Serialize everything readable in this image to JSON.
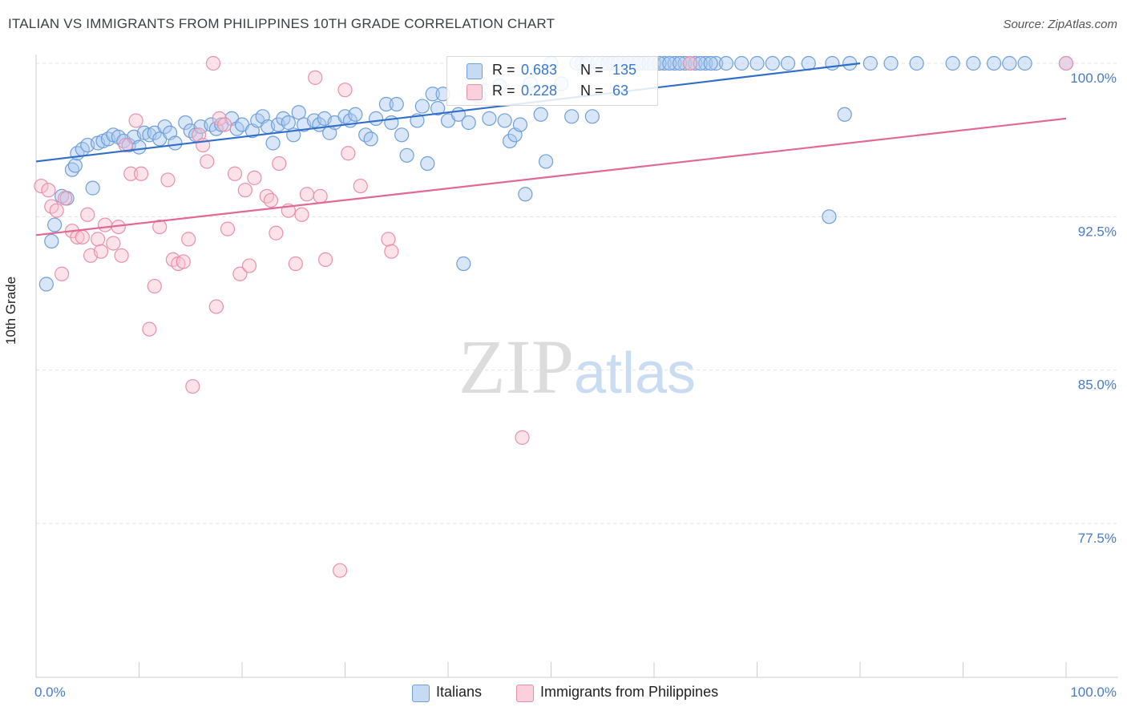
{
  "title": "ITALIAN VS IMMIGRANTS FROM PHILIPPINES 10TH GRADE CORRELATION CHART",
  "source": "Source: ZipAtlas.com",
  "watermark": "ZIPatlas",
  "legend": {
    "series": [
      {
        "name": "Italians",
        "r_label": "R =",
        "r_value": "0.683",
        "n_label": "N =",
        "n_value": "135",
        "color": "#a8c8f0",
        "stroke": "#6f9fd8"
      },
      {
        "name": "Immigrants from Philippines",
        "r_label": "R =",
        "r_value": "0.228",
        "n_label": "N =",
        "n_value": "63",
        "color": "#f8c0d0",
        "stroke": "#e890aa"
      }
    ]
  },
  "chart_data": {
    "type": "scatter",
    "title": "ITALIAN VS IMMIGRANTS FROM PHILIPPINES 10TH GRADE CORRELATION CHART",
    "xlabel": "",
    "ylabel": "10th Grade",
    "xlim": [
      0,
      100
    ],
    "ylim": [
      71.5,
      101.5
    ],
    "x_tick_labels": [
      "0.0%",
      "100.0%"
    ],
    "y_ticks": [
      77.5,
      85.0,
      92.5,
      100.0
    ],
    "y_tick_labels": [
      "77.5%",
      "85.0%",
      "92.5%",
      "100.0%"
    ],
    "grid": true,
    "legend_position": "top-center",
    "series": [
      {
        "name": "Italians",
        "color": "#6f9fd8",
        "fill": "#a8c8f0",
        "trend": {
          "x": [
            0,
            80
          ],
          "y": [
            95.2,
            100.0
          ],
          "color": "#2f6fc9"
        },
        "points": [
          [
            1,
            89.2
          ],
          [
            1.5,
            91.3
          ],
          [
            1.8,
            92.1
          ],
          [
            2.5,
            93.5
          ],
          [
            3,
            93.4
          ],
          [
            3.5,
            94.8
          ],
          [
            3.8,
            95.0
          ],
          [
            4,
            95.6
          ],
          [
            4.5,
            95.8
          ],
          [
            5,
            96.0
          ],
          [
            5.5,
            93.9
          ],
          [
            6,
            96.1
          ],
          [
            6.5,
            96.2
          ],
          [
            7,
            96.3
          ],
          [
            7.5,
            96.5
          ],
          [
            8,
            96.4
          ],
          [
            8.5,
            96.2
          ],
          [
            9,
            96.0
          ],
          [
            9.5,
            96.4
          ],
          [
            10,
            95.9
          ],
          [
            10.5,
            96.6
          ],
          [
            11,
            96.5
          ],
          [
            11.5,
            96.6
          ],
          [
            12,
            96.3
          ],
          [
            12.5,
            96.9
          ],
          [
            13,
            96.6
          ],
          [
            13.5,
            96.1
          ],
          [
            14.5,
            97.1
          ],
          [
            15,
            96.7
          ],
          [
            15.5,
            96.5
          ],
          [
            16,
            96.9
          ],
          [
            17,
            97.0
          ],
          [
            17.5,
            96.8
          ],
          [
            18,
            97.0
          ],
          [
            19,
            97.3
          ],
          [
            19.5,
            96.8
          ],
          [
            20,
            97.0
          ],
          [
            21,
            96.7
          ],
          [
            21.5,
            97.2
          ],
          [
            22,
            97.4
          ],
          [
            22.5,
            96.9
          ],
          [
            23,
            96.1
          ],
          [
            23.5,
            97.0
          ],
          [
            24,
            97.3
          ],
          [
            24.5,
            97.1
          ],
          [
            25,
            96.5
          ],
          [
            25.5,
            97.6
          ],
          [
            26,
            97.0
          ],
          [
            27,
            97.2
          ],
          [
            27.5,
            97.0
          ],
          [
            28,
            97.3
          ],
          [
            28.5,
            96.6
          ],
          [
            29,
            97.1
          ],
          [
            30,
            97.4
          ],
          [
            30.5,
            97.2
          ],
          [
            31,
            97.5
          ],
          [
            32,
            96.5
          ],
          [
            32.5,
            96.3
          ],
          [
            33,
            97.3
          ],
          [
            34,
            98.0
          ],
          [
            34.5,
            97.1
          ],
          [
            35,
            98.0
          ],
          [
            35.5,
            96.5
          ],
          [
            36,
            95.5
          ],
          [
            37,
            97.2
          ],
          [
            37.5,
            97.9
          ],
          [
            38,
            95.1
          ],
          [
            38.5,
            98.5
          ],
          [
            39,
            97.8
          ],
          [
            39.5,
            98.5
          ],
          [
            40,
            97.2
          ],
          [
            41,
            97.5
          ],
          [
            41.5,
            90.2
          ],
          [
            42,
            97.1
          ],
          [
            43,
            98.4
          ],
          [
            44,
            97.3
          ],
          [
            45,
            98.9
          ],
          [
            45.5,
            97.2
          ],
          [
            46,
            96.2
          ],
          [
            46.5,
            96.5
          ],
          [
            47,
            97.0
          ],
          [
            47.5,
            93.6
          ],
          [
            48,
            99.0
          ],
          [
            49,
            97.5
          ],
          [
            49.5,
            95.2
          ],
          [
            50,
            100.0
          ],
          [
            51,
            99.0
          ],
          [
            52,
            97.4
          ],
          [
            53,
            100.0
          ],
          [
            54,
            97.4
          ],
          [
            55,
            100.0
          ],
          [
            56,
            100.0
          ],
          [
            57,
            100.0
          ],
          [
            58,
            100.0
          ],
          [
            59,
            100.0
          ],
          [
            60,
            100.0
          ],
          [
            61,
            100.0
          ],
          [
            62,
            100.0
          ],
          [
            63,
            100.0
          ],
          [
            64,
            100.0
          ],
          [
            65,
            100.0
          ],
          [
            66,
            100.0
          ],
          [
            67,
            100.0
          ],
          [
            68.5,
            100.0
          ],
          [
            70,
            100.0
          ],
          [
            71.5,
            100.0
          ],
          [
            73,
            100.0
          ],
          [
            75,
            100.0
          ],
          [
            77,
            92.5
          ],
          [
            77.3,
            100.0
          ],
          [
            78.5,
            97.5
          ],
          [
            79,
            100.0
          ],
          [
            81,
            100.0
          ],
          [
            83,
            100.0
          ],
          [
            85.5,
            100.0
          ],
          [
            89,
            100.0
          ],
          [
            91,
            100.0
          ],
          [
            93,
            100.0
          ],
          [
            94.5,
            100.0
          ],
          [
            96,
            100.0
          ],
          [
            100,
            100.0
          ],
          [
            52.5,
            100.0
          ],
          [
            53.5,
            100.0
          ],
          [
            54.5,
            100.0
          ],
          [
            55.5,
            100.0
          ],
          [
            56.5,
            100.0
          ],
          [
            57.5,
            100.0
          ],
          [
            58.5,
            100.0
          ],
          [
            59.5,
            100.0
          ],
          [
            60.5,
            100.0
          ],
          [
            61.5,
            100.0
          ],
          [
            62.5,
            100.0
          ],
          [
            63.5,
            100.0
          ],
          [
            64.5,
            100.0
          ],
          [
            65.5,
            100.0
          ]
        ]
      },
      {
        "name": "Immigrants from Philippines",
        "color": "#e890aa",
        "fill": "#f8c0d0",
        "trend": {
          "x": [
            0,
            100
          ],
          "y": [
            91.6,
            97.3
          ],
          "color": "#e06a93"
        },
        "points": [
          [
            0.5,
            94.0
          ],
          [
            1.2,
            93.8
          ],
          [
            1.5,
            93.0
          ],
          [
            2,
            92.8
          ],
          [
            2.5,
            89.7
          ],
          [
            2.8,
            93.4
          ],
          [
            3.5,
            91.8
          ],
          [
            4,
            91.5
          ],
          [
            4.5,
            91.5
          ],
          [
            5,
            92.6
          ],
          [
            5.3,
            90.6
          ],
          [
            6,
            91.4
          ],
          [
            6.3,
            90.8
          ],
          [
            6.7,
            92.1
          ],
          [
            7.5,
            91.2
          ],
          [
            8,
            92.0
          ],
          [
            8.3,
            90.6
          ],
          [
            8.7,
            96.0
          ],
          [
            9.2,
            94.6
          ],
          [
            9.7,
            97.2
          ],
          [
            10.2,
            94.6
          ],
          [
            11,
            87.0
          ],
          [
            11.5,
            89.1
          ],
          [
            12,
            92.0
          ],
          [
            12.8,
            94.3
          ],
          [
            13.3,
            90.4
          ],
          [
            13.8,
            90.2
          ],
          [
            14.3,
            90.3
          ],
          [
            14.8,
            91.4
          ],
          [
            15.2,
            84.2
          ],
          [
            15.8,
            96.5
          ],
          [
            16.2,
            96.0
          ],
          [
            16.6,
            95.2
          ],
          [
            17.2,
            100.0
          ],
          [
            17.5,
            88.1
          ],
          [
            17.8,
            97.3
          ],
          [
            18.3,
            97.0
          ],
          [
            18.6,
            91.9
          ],
          [
            19.3,
            94.6
          ],
          [
            19.8,
            89.7
          ],
          [
            20.3,
            93.8
          ],
          [
            20.7,
            90.1
          ],
          [
            21.2,
            94.4
          ],
          [
            22.4,
            93.5
          ],
          [
            22.8,
            93.3
          ],
          [
            23.3,
            91.7
          ],
          [
            23.6,
            95.1
          ],
          [
            24.5,
            92.8
          ],
          [
            25.2,
            90.2
          ],
          [
            25.8,
            92.6
          ],
          [
            26.3,
            93.6
          ],
          [
            27.1,
            99.3
          ],
          [
            27.6,
            93.5
          ],
          [
            28.1,
            90.4
          ],
          [
            29.5,
            75.2
          ],
          [
            30.0,
            98.7
          ],
          [
            30.3,
            95.6
          ],
          [
            31.5,
            94.0
          ],
          [
            34.2,
            91.4
          ],
          [
            34.5,
            90.8
          ],
          [
            47.2,
            81.7
          ],
          [
            63.5,
            100.0
          ],
          [
            100,
            100.0
          ]
        ]
      }
    ]
  }
}
